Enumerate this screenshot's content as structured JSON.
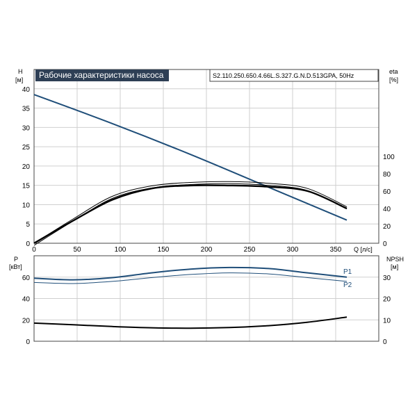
{
  "header": {
    "title": "Рабочие характеристики насоса",
    "model": "S2.110.250.650.4.66L.S.327.G.N.D.513GPA, 50Hz"
  },
  "colors": {
    "head": "#1f4e79",
    "eta": "#000000",
    "power": "#1f4e79",
    "npsh": "#000000",
    "title_bg": "#2e3f55"
  },
  "chart_data": [
    {
      "type": "line",
      "name": "upper-panel",
      "x_axis": {
        "label": "Q [л/с]",
        "range": [
          0,
          400
        ],
        "ticks": [
          0,
          50,
          100,
          150,
          200,
          250,
          300,
          350
        ]
      },
      "y_left": {
        "label_top": "H",
        "label_unit": "[м]",
        "range": [
          0,
          45
        ],
        "ticks": [
          0,
          5,
          10,
          15,
          20,
          25,
          30,
          35,
          40
        ]
      },
      "y_right": {
        "label_top": "eta",
        "label_unit": "[%]",
        "range": [
          0,
          100
        ],
        "ticks": [
          0,
          20,
          40,
          60,
          80,
          100
        ]
      },
      "grid": true,
      "series": [
        {
          "key": "head",
          "axis": "left",
          "x": [
            0,
            100,
            200,
            300,
            400
          ],
          "y": [
            38.5,
            31.0,
            23.0,
            14.5,
            6.0
          ]
        },
        {
          "key": "eta1",
          "axis": "right",
          "x": [
            0,
            50,
            100,
            150,
            200,
            250,
            300,
            350,
            400
          ],
          "y": [
            0,
            28,
            54,
            66,
            70,
            71,
            69,
            63,
            42
          ]
        },
        {
          "key": "eta2",
          "axis": "right",
          "x": [
            0,
            50,
            100,
            150,
            200,
            250,
            300,
            350,
            400
          ],
          "y": [
            0,
            26,
            50,
            63,
            66.5,
            66.5,
            65,
            60,
            40
          ]
        }
      ]
    },
    {
      "type": "line",
      "name": "lower-panel",
      "x_axis": {
        "range": [
          0,
          400
        ]
      },
      "y_left": {
        "label_top": "P",
        "label_unit": "[кВт]",
        "range": [
          0,
          80
        ],
        "ticks": [
          0,
          20,
          40,
          60
        ]
      },
      "y_right": {
        "label_top": "NPSH",
        "label_unit": "[м]",
        "range": [
          0,
          40
        ],
        "ticks": [
          0,
          10,
          20,
          30
        ]
      },
      "grid": true,
      "series": [
        {
          "key": "p1",
          "name": "P1",
          "axis": "left",
          "x": [
            0,
            50,
            100,
            150,
            200,
            250,
            300,
            350,
            400
          ],
          "y": [
            59,
            57.5,
            59.5,
            64,
            67.5,
            69,
            68,
            64,
            60
          ]
        },
        {
          "key": "p2",
          "name": "P2",
          "axis": "left",
          "x": [
            0,
            50,
            100,
            150,
            200,
            250,
            300,
            350,
            400
          ],
          "y": [
            55,
            54,
            56,
            59.5,
            62.5,
            64,
            63,
            59.5,
            56
          ]
        },
        {
          "key": "npsh",
          "axis": "right",
          "x": [
            0,
            50,
            100,
            150,
            200,
            250,
            300,
            350,
            400
          ],
          "y": [
            8.5,
            7.7,
            6.9,
            6.3,
            6.1,
            6.4,
            7.3,
            8.9,
            11.3
          ]
        }
      ]
    }
  ]
}
